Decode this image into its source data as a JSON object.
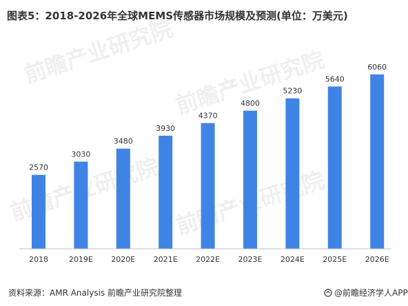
{
  "title": "图表5：2018-2026年全球MEMS传感器市场规模及预测(单位：万美元)",
  "source": "资料来源：AMR Analysis 前瞻产业研究院整理",
  "brand": "@前瞻经济学人APP",
  "watermark_text": "前瞻产业研究院",
  "colors": {
    "bar": "#3f84e5",
    "axis": "#bfbfbf",
    "text": "#333333"
  },
  "chart_data": {
    "type": "bar",
    "title": "",
    "xlabel": "",
    "ylabel": "",
    "categories": [
      "2018",
      "2019E",
      "2020E",
      "2021E",
      "2022E",
      "2023E",
      "2024E",
      "2025E",
      "2026E"
    ],
    "values": [
      2570,
      3030,
      3480,
      3930,
      4370,
      4800,
      5230,
      5640,
      6060
    ],
    "ylim": [
      0,
      6500
    ],
    "grid": false,
    "legend": "none",
    "data_labels": true
  }
}
